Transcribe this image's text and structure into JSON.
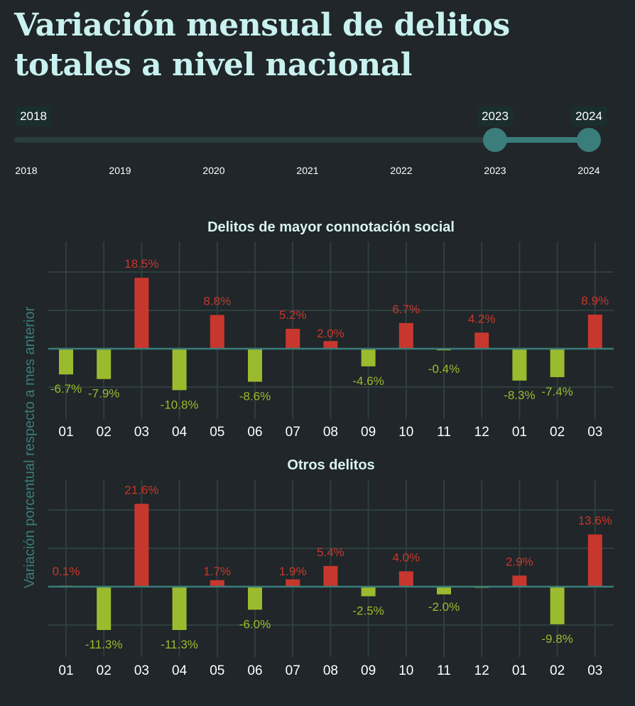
{
  "title": "Variación mensual de delitos totales a nivel nacional",
  "slider": {
    "min_year": "2018",
    "max_year": "2024",
    "selected_from": "2023",
    "selected_to": "2024",
    "years": [
      "2018",
      "2019",
      "2020",
      "2021",
      "2022",
      "2023",
      "2024"
    ]
  },
  "colors": {
    "background": "#202629",
    "increase": "#c8372d",
    "decrease": "#9bbb2e",
    "accent": "#3a7d7b",
    "grid": "#2e3f3c"
  },
  "chart_data": [
    {
      "type": "bar",
      "title": "Delitos de mayor connotación social",
      "ylabel": "Variación porcentual respecto a mes anterior",
      "categories": [
        "01",
        "02",
        "03",
        "04",
        "05",
        "06",
        "07",
        "08",
        "09",
        "10",
        "11",
        "12",
        "01",
        "02",
        "03"
      ],
      "values": [
        -6.7,
        -7.9,
        18.5,
        -10.8,
        8.8,
        -8.6,
        5.2,
        2.0,
        -4.6,
        6.7,
        -0.4,
        4.2,
        -8.3,
        -7.4,
        8.9
      ],
      "labels": [
        "-6.7%",
        "-7.9%",
        "18.5%",
        "-10.8%",
        "8.8%",
        "-8.6%",
        "5.2%",
        "2.0%",
        "-4.6%",
        "6.7%",
        "-0.4%",
        "4.2%",
        "-8.3%",
        "-7.4%",
        "8.9%"
      ],
      "ylim": [
        -14,
        28
      ]
    },
    {
      "type": "bar",
      "title": "Otros delitos",
      "ylabel": "Variación porcentual respecto a mes anterior",
      "categories": [
        "01",
        "02",
        "03",
        "04",
        "05",
        "06",
        "07",
        "08",
        "09",
        "10",
        "11",
        "12",
        "01",
        "02",
        "03"
      ],
      "values": [
        0.1,
        -11.3,
        21.6,
        -11.3,
        1.7,
        -6.0,
        1.9,
        5.4,
        -2.5,
        4.0,
        -2.0,
        -0.3,
        2.9,
        -9.8,
        13.6
      ],
      "labels": [
        "0.1%",
        "-11.3%",
        "21.6%",
        "-11.3%",
        "1.7%",
        "-6.0%",
        "1.9%",
        "5.4%",
        "-2.5%",
        "4.0%",
        "-2.0%",
        "",
        "2.9%",
        "-9.8%",
        "13.6%"
      ],
      "ylim": [
        -14,
        28
      ]
    }
  ]
}
